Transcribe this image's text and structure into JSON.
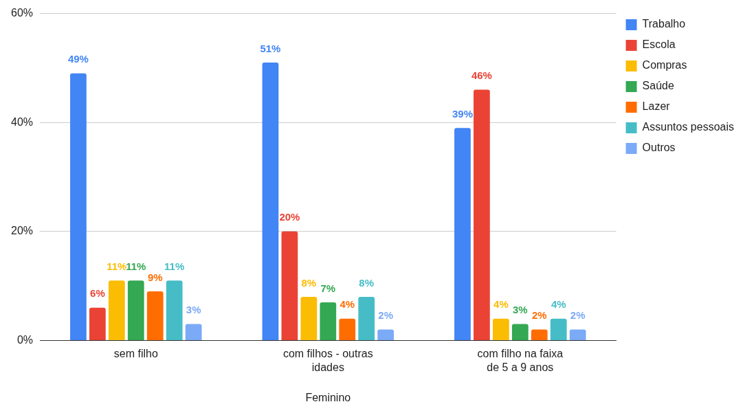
{
  "chart_data": {
    "type": "bar",
    "xlabel": "Feminino",
    "categories": [
      "sem filho",
      "com filhos - outras idades",
      "com filho na faixa de 5 a 9 anos"
    ],
    "series": [
      {
        "name": "Trabalho",
        "color": "#4285f4",
        "values": [
          49,
          51,
          39
        ],
        "value_labels": [
          "49%",
          "51%",
          "39%"
        ]
      },
      {
        "name": "Escola",
        "color": "#ea4335",
        "values": [
          6,
          20,
          46
        ],
        "value_labels": [
          "6%",
          "20%",
          "46%"
        ]
      },
      {
        "name": "Compras",
        "color": "#fbbc04",
        "values": [
          11,
          8,
          4
        ],
        "value_labels": [
          "11%",
          "8%",
          "4%"
        ]
      },
      {
        "name": "Saúde",
        "color": "#34a853",
        "values": [
          11,
          7,
          3
        ],
        "value_labels": [
          "11%",
          "7%",
          "3%"
        ]
      },
      {
        "name": "Lazer",
        "color": "#ff6d01",
        "values": [
          9,
          4,
          2
        ],
        "value_labels": [
          "9%",
          "4%",
          "2%"
        ]
      },
      {
        "name": "Assuntos pessoais",
        "color": "#46bdc6",
        "values": [
          11,
          8,
          4
        ],
        "value_labels": [
          "11%",
          "8%",
          "4%"
        ]
      },
      {
        "name": "Outros",
        "color": "#7baaf7",
        "values": [
          3,
          2,
          2
        ],
        "value_labels": [
          "3%",
          "2%",
          "2%"
        ]
      }
    ],
    "ylim": [
      0,
      60
    ],
    "yticks": [
      {
        "value": 0,
        "label": "0%"
      },
      {
        "value": 20,
        "label": "20%"
      },
      {
        "value": 40,
        "label": "40%"
      },
      {
        "value": 60,
        "label": "60%"
      }
    ],
    "grid": "y",
    "legend": "top right"
  }
}
